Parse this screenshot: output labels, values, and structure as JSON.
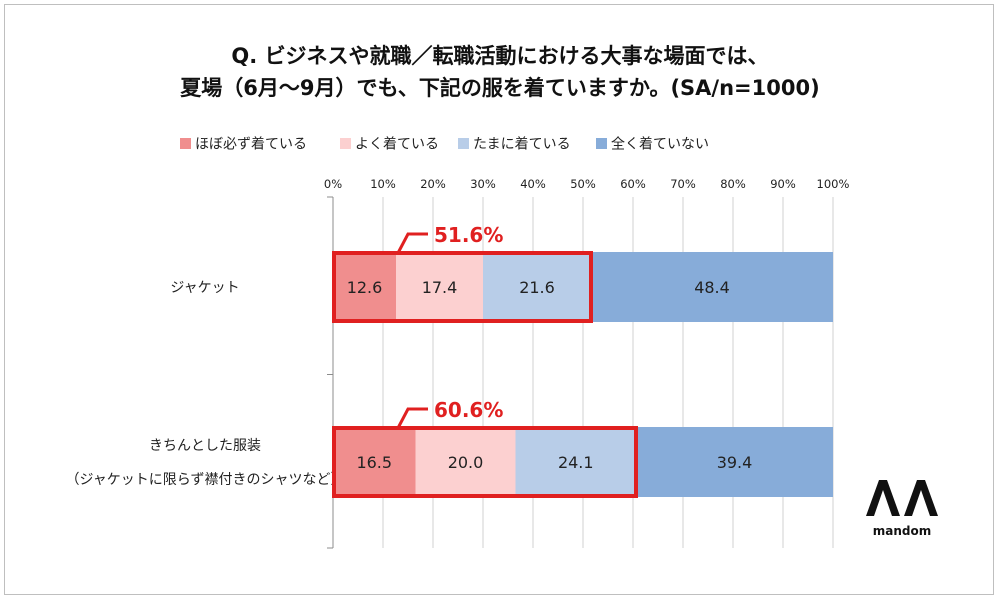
{
  "chart_data": {
    "type": "bar",
    "orientation": "horizontal",
    "stacked": true,
    "title_lines": [
      "Q. ビジネスや就職／転職活動における大事な場面では、",
      "夏場（6月～9月）でも、下記の服を着ていますか。(SA/n=1000)"
    ],
    "categories": [
      {
        "label_lines": [
          "ジャケット"
        ]
      },
      {
        "label_lines": [
          "きちんとした服装",
          "（ジャケットに限らず襟付きのシャツなど）"
        ]
      }
    ],
    "series": [
      {
        "name": "ほぼ必ず着ている",
        "color": "#f08e8e",
        "values": [
          12.6,
          16.5
        ]
      },
      {
        "name": "よく着ている",
        "color": "#fcd0d0",
        "values": [
          17.4,
          20.0
        ]
      },
      {
        "name": "たまに着ている",
        "color": "#b8cde8",
        "values": [
          21.6,
          24.1
        ]
      },
      {
        "name": "全く着ていない",
        "color": "#87acd9",
        "values": [
          48.4,
          39.4
        ]
      }
    ],
    "data_labels": [
      [
        "12.6",
        "17.4",
        "21.6",
        "48.4"
      ],
      [
        "16.5",
        "20.0",
        "24.1",
        "39.4"
      ]
    ],
    "callouts": [
      "51.6%",
      "60.6%"
    ],
    "callout_color": "#e02020",
    "xlim": [
      0,
      100
    ],
    "x_ticks": [
      "0%",
      "10%",
      "20%",
      "30%",
      "40%",
      "50%",
      "60%",
      "70%",
      "80%",
      "90%",
      "100%"
    ],
    "grid": true,
    "legend_position": "top"
  },
  "brand": {
    "name": "mandom"
  }
}
